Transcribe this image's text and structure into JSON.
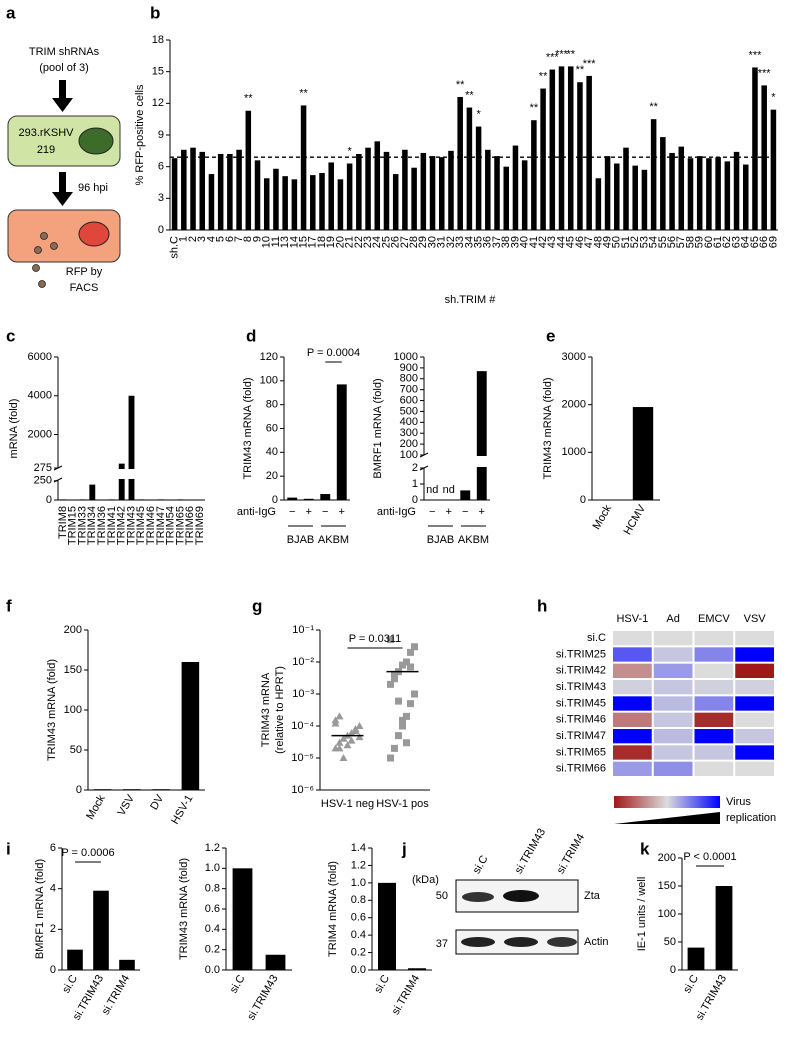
{
  "chart_data": [
    {
      "panel": "b",
      "type": "bar",
      "ylabel": "% RFP-positive cells",
      "xlabel": "sh.TRIM #",
      "categories": [
        "sh.C",
        "1",
        "2",
        "3",
        "4",
        "5",
        "6",
        "7",
        "8",
        "9",
        "10",
        "11",
        "13",
        "14",
        "15",
        "17",
        "18",
        "19",
        "20",
        "21",
        "22",
        "23",
        "24",
        "25",
        "26",
        "27",
        "28",
        "29",
        "30",
        "31",
        "32",
        "33",
        "34",
        "35",
        "36",
        "37",
        "38",
        "39",
        "40",
        "41",
        "42",
        "43",
        "44",
        "45",
        "46",
        "47",
        "48",
        "49",
        "50",
        "51",
        "52",
        "53",
        "54",
        "55",
        "56",
        "57",
        "58",
        "59",
        "60",
        "61",
        "62",
        "63",
        "64",
        "65",
        "66",
        "69"
      ],
      "values": [
        6.8,
        7.6,
        7.8,
        7.4,
        5.3,
        7.2,
        7.2,
        7.6,
        11.3,
        6.6,
        4.9,
        5.8,
        5.1,
        4.8,
        11.8,
        5.2,
        5.4,
        6.4,
        4.8,
        6.3,
        7.2,
        7.8,
        8.4,
        7.4,
        5.3,
        7.6,
        5.9,
        7.3,
        7.0,
        6.9,
        7.5,
        12.6,
        11.6,
        9.8,
        7.6,
        7.0,
        6.0,
        8.0,
        6.6,
        10.4,
        13.4,
        15.2,
        15.5,
        15.5,
        14.0,
        14.6,
        4.9,
        7.0,
        6.3,
        7.8,
        6.1,
        5.7,
        10.5,
        8.8,
        7.3,
        7.9,
        6.8,
        7.0,
        6.8,
        6.9,
        6.5,
        7.4,
        6.2,
        15.4,
        13.7,
        11.4
      ],
      "significance": [
        null,
        null,
        null,
        null,
        null,
        null,
        null,
        null,
        "**",
        null,
        null,
        null,
        null,
        null,
        "**",
        null,
        null,
        null,
        null,
        "*",
        null,
        null,
        null,
        null,
        null,
        null,
        null,
        null,
        null,
        null,
        null,
        "**",
        "**",
        "*",
        null,
        null,
        null,
        null,
        null,
        "**",
        "**",
        "***",
        "***",
        "**",
        "**",
        "***",
        null,
        null,
        null,
        null,
        null,
        null,
        "**",
        null,
        null,
        null,
        null,
        null,
        null,
        null,
        null,
        null,
        null,
        "***",
        "***",
        "*"
      ],
      "reference_line": 6.9,
      "color": "#000000",
      "ylim": [
        0,
        18
      ],
      "yticks": [
        0,
        3,
        6,
        9,
        12,
        15,
        18
      ]
    },
    {
      "panel": "c",
      "type": "bar",
      "ylabel": "mRNA (fold)",
      "categories": [
        "TRIM8",
        "TRIM15",
        "TRIM33",
        "TRIM34",
        "TRIM36",
        "TRIM41",
        "TRIM42",
        "TRIM43",
        "TRIM45",
        "TRIM46",
        "TRIM47",
        "TRIM54",
        "TRIM65",
        "TRIM66",
        "TRIM69"
      ],
      "values": [
        8,
        6,
        8,
        200,
        6,
        8,
        500,
        4000,
        8,
        6,
        8,
        6,
        8,
        6,
        6
      ],
      "color": "#000000",
      "ylim": [
        0,
        6000
      ],
      "ysegments": [
        [
          0,
          260
        ],
        [
          275,
          6000
        ]
      ],
      "yticks": [
        0,
        250,
        275,
        2000,
        4000,
        6000
      ]
    },
    {
      "panel": "d",
      "type": "bar",
      "ylabel": "TRIM43 mRNA (fold)",
      "category_title": "anti-IgG",
      "categories": [
        "−",
        "+",
        "−",
        "+"
      ],
      "groups": [
        "BJAB",
        "AKBM"
      ],
      "values": [
        2,
        1,
        5,
        97
      ],
      "annotation": "P = 0.0004",
      "color": "#000000",
      "ylim": [
        0,
        120
      ],
      "yticks": [
        0,
        20,
        40,
        60,
        80,
        100,
        120
      ]
    },
    {
      "type": "bar",
      "ylabel": "BMRF1 mRNA (fold)",
      "category_title": "anti-IgG",
      "categories": [
        "−",
        "+",
        "−",
        "+"
      ],
      "groups": [
        "BJAB",
        "AKBM"
      ],
      "values": [
        null,
        null,
        0.6,
        870
      ],
      "value_labels": [
        "nd",
        "nd",
        null,
        null
      ],
      "color": "#000000",
      "ylim": [
        0,
        1000
      ],
      "ysegments": [
        [
          0,
          2
        ],
        [
          100,
          1000
        ]
      ],
      "yticks": [
        0,
        1,
        2,
        100,
        200,
        300,
        400,
        500,
        600,
        700,
        800,
        900,
        1000
      ]
    },
    {
      "panel": "e",
      "type": "bar",
      "ylabel": "TRIM43  mRNA (fold)",
      "categories": [
        "Mock",
        "HCMV"
      ],
      "values": [
        1,
        1950
      ],
      "color": "#000000",
      "ylim": [
        0,
        3000
      ],
      "yticks": [
        0,
        1000,
        2000,
        3000
      ]
    },
    {
      "panel": "f",
      "type": "bar",
      "ylabel": "TRIM43  mRNA (fold)",
      "categories": [
        "Mock",
        "VSV",
        "DV",
        "HSV-1"
      ],
      "values": [
        1,
        1,
        1,
        160
      ],
      "color": "#000000",
      "ylim": [
        0,
        200
      ],
      "yticks": [
        0,
        50,
        100,
        150,
        200
      ]
    },
    {
      "panel": "g",
      "type": "dotplot",
      "ylabel": [
        "TRIM43 mRNA",
        "(relative to HPRT)"
      ],
      "categories": [
        "HSV-1 neg",
        "HSV-1 pos"
      ],
      "groups": [
        {
          "marker": "triangle",
          "values": [
            2e-05,
            3e-05,
            4e-05,
            5e-05,
            6e-05,
            8e-05,
            0.0001,
            0.00015,
            0.0002,
            1e-05,
            2.5e-05,
            3.5e-05,
            7e-05,
            4.5e-05,
            0.00012,
            2e-05
          ]
        },
        {
          "marker": "square",
          "values": [
            1e-05,
            2e-05,
            5e-05,
            0.0001,
            0.0002,
            0.0005,
            0.001,
            0.002,
            0.003,
            0.005,
            0.008,
            0.01,
            0.02,
            0.03,
            0.05,
            0.004,
            0.0006,
            0.00015,
            3e-05,
            0.007
          ]
        }
      ],
      "means": [
        5e-05,
        0.005
      ],
      "annotation": "P = 0.0311",
      "color": "#999999",
      "log": true,
      "ylim": [
        1e-06,
        0.1
      ],
      "yticks": [
        {
          "value": 1e-06,
          "label": "10⁻⁶"
        },
        {
          "value": 1e-05,
          "label": "10⁻⁵"
        },
        {
          "value": 0.0001,
          "label": "10⁻⁴"
        },
        {
          "value": 0.001,
          "label": "10⁻³"
        },
        {
          "value": 0.01,
          "label": "10⁻²"
        },
        {
          "value": 0.1,
          "label": "10⁻¹"
        }
      ]
    },
    {
      "panel": "h",
      "type": "heatmap",
      "x": [
        "HSV-1",
        "Ad",
        "EMCV",
        "VSV"
      ],
      "y": [
        "si.C",
        "si.TRIM25",
        "si.TRIM42",
        "si.TRIM43",
        "si.TRIM45",
        "si.TRIM46",
        "si.TRIM47",
        "si.TRIM65",
        "si.TRIM66"
      ],
      "values": [
        [
          0,
          0,
          0,
          0
        ],
        [
          0.6,
          0.1,
          0.4,
          1
        ],
        [
          -0.4,
          0.3,
          0,
          -1
        ],
        [
          0.05,
          0.1,
          0.05,
          0.05
        ],
        [
          1,
          0.15,
          0.4,
          1
        ],
        [
          -0.5,
          0.1,
          -0.9,
          0
        ],
        [
          1,
          0.15,
          1,
          0.1
        ],
        [
          -0.9,
          0.1,
          0.1,
          1
        ],
        [
          0.3,
          0.35,
          0,
          0
        ]
      ],
      "zlim": [
        -1,
        1
      ],
      "colors": [
        "#a01818",
        "#dcdcdc",
        "#0000ff"
      ],
      "colorbar_label": [
        "Virus",
        "replication"
      ]
    },
    {
      "panel": "i",
      "type": "bar",
      "ylabel": "BMRF1 mRNA (fold)",
      "categories": [
        "si.C",
        "si.TRIM43",
        "si.TRIM4"
      ],
      "values": [
        1.0,
        3.9,
        0.5
      ],
      "annotation": "P = 0.0006",
      "color": "#000000",
      "ylim": [
        0,
        6
      ],
      "yticks": [
        0,
        2,
        4,
        6
      ]
    },
    {
      "type": "bar",
      "ylabel": "TRIM43 mRNA  (fold)",
      "categories": [
        "si.C",
        "si.TRIM43"
      ],
      "values": [
        1.0,
        0.15
      ],
      "color": "#000000",
      "ylim": [
        0,
        1.2
      ],
      "yticks": [
        {
          "value": 0,
          "label": "0.0"
        },
        0.2,
        0.4,
        0.6,
        0.8,
        {
          "value": 1,
          "label": "1.0"
        },
        1.2
      ]
    },
    {
      "type": "bar",
      "ylabel": "TRIM4 mRNA (fold)",
      "categories": [
        "si.C",
        "si.TRIM4"
      ],
      "values": [
        1.0,
        0.02
      ],
      "color": "#000000",
      "ylim": [
        0,
        1.4
      ],
      "yticks": [
        {
          "value": 0,
          "label": "0.0"
        },
        0.2,
        0.4,
        0.6,
        0.8,
        {
          "value": 1,
          "label": "1.0"
        },
        1.2,
        1.4
      ]
    },
    {
      "panel": "k",
      "type": "bar",
      "ylabel": "IE-1 units / well",
      "categories": [
        "si.C",
        "si.TRIM43"
      ],
      "values": [
        40,
        150
      ],
      "annotation": "P < 0.0001",
      "color": "#000000",
      "ylim": [
        0,
        200
      ],
      "yticks": [
        0,
        50,
        100,
        150,
        200
      ]
    }
  ],
  "diagram": {
    "panel": "a",
    "title_lines": [
      "TRIM shRNAs",
      "(pool of 3)"
    ],
    "cell_lines": [
      "293.rKSHV",
      "219"
    ],
    "time": "96 hpi",
    "readout_lines": [
      "RFP by",
      "FACS"
    ]
  },
  "blot": {
    "panel": "j",
    "unit": "(kDa)",
    "markers": [
      50,
      37
    ],
    "lanes": [
      "si.C",
      "si.TRIM43",
      "si.TRIM4"
    ],
    "bands": [
      "Zta",
      "Actin"
    ]
  }
}
